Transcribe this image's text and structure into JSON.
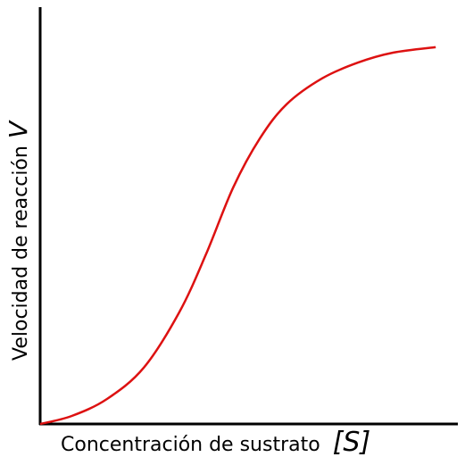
{
  "chart_data": {
    "type": "line",
    "xlabel": "Concentración de sustrato",
    "xlabel_symbol": "[S]",
    "ylabel": "Velocidad de reacción",
    "ylabel_symbol": "V",
    "xlim": [
      0,
      100
    ],
    "ylim": [
      0,
      100
    ],
    "x": [
      0,
      7.5,
      16.0,
      24.8,
      33.3,
      39.7,
      46.2,
      52.6,
      59.0,
      67.5,
      76.1,
      84.6,
      94.7
    ],
    "series": [
      {
        "color": "#dd1111",
        "values": [
          0,
          1.9,
          6.0,
          13.5,
          26.8,
          40.7,
          56.7,
          68.5,
          76.7,
          82.9,
          86.7,
          89.1,
          90.4
        ]
      }
    ]
  }
}
